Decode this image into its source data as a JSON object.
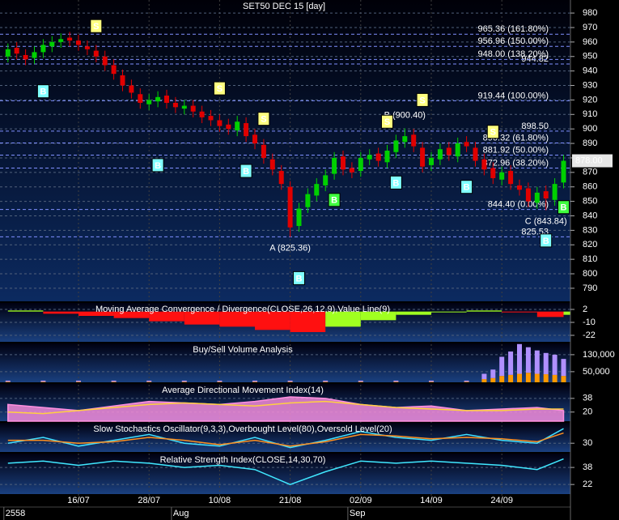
{
  "chart_data": [
    {
      "type": "candlestick",
      "title": "SET50 DEC 15   [day]",
      "categories": [
        null,
        null,
        null,
        null,
        null,
        null,
        null,
        null,
        "16/07",
        null,
        null,
        null,
        null,
        null,
        null,
        null,
        "28/07",
        null,
        null,
        null,
        null,
        null,
        null,
        null,
        "10/08",
        null,
        null,
        null,
        null,
        null,
        null,
        null,
        "21/08",
        null,
        null,
        null,
        null,
        null,
        null,
        null,
        "02/09",
        null,
        null,
        null,
        null,
        null,
        null,
        null,
        "14/09",
        null,
        null,
        null,
        null,
        null,
        null,
        null,
        "24/09",
        null,
        null,
        null,
        null,
        null,
        null,
        null
      ],
      "open": [
        950,
        956,
        951,
        949,
        953,
        957,
        960,
        963,
        961,
        957,
        954,
        950,
        944,
        937,
        930,
        924,
        917,
        919,
        923,
        918,
        914,
        916,
        912,
        909,
        906,
        903,
        899,
        904,
        896,
        889,
        879,
        871,
        860,
        833,
        846,
        854,
        861,
        869,
        881,
        873,
        871,
        879,
        883,
        877,
        884,
        891,
        896,
        887,
        875,
        879,
        887,
        881,
        891,
        887,
        879,
        873,
        865,
        871,
        861,
        859,
        849,
        857,
        851,
        863
      ],
      "high": [
        959,
        960,
        955,
        957,
        962,
        964,
        966,
        967,
        965,
        961,
        958,
        954,
        948,
        941,
        934,
        928,
        924,
        926,
        927,
        922,
        920,
        920,
        916,
        913,
        910,
        907,
        909,
        908,
        900,
        893,
        883,
        875,
        864,
        849,
        859,
        866,
        872,
        884,
        885,
        877,
        884,
        886,
        887,
        889,
        896,
        900.4,
        900,
        891,
        884,
        890,
        891,
        894,
        895,
        891,
        883,
        877,
        874,
        875,
        865,
        863,
        860,
        861,
        866,
        882
      ],
      "low": [
        946,
        948,
        944,
        945,
        949,
        953,
        956,
        957,
        954,
        951,
        946,
        940,
        934,
        926,
        921,
        914,
        913,
        915,
        914,
        911,
        910,
        908,
        904,
        902,
        898,
        896,
        895,
        891,
        886,
        876,
        868,
        858,
        825.36,
        829,
        842,
        850,
        857,
        865,
        868,
        866,
        867,
        875,
        874,
        873,
        880,
        887,
        884,
        870,
        871,
        875,
        878,
        877,
        884,
        874,
        868,
        862,
        861,
        858,
        854,
        846,
        845,
        843.84,
        847,
        859
      ],
      "close": [
        955,
        952,
        948,
        953,
        958,
        960,
        962,
        961,
        958,
        955,
        950,
        944,
        938,
        930,
        925,
        918,
        920,
        922,
        918,
        915,
        916,
        912,
        908,
        906,
        902,
        900,
        905,
        895,
        890,
        880,
        872,
        862,
        832,
        845,
        855,
        862,
        868,
        880,
        872,
        870,
        880,
        882,
        878,
        885,
        892,
        895,
        888,
        874,
        880,
        886,
        882,
        890,
        888,
        878,
        872,
        866,
        870,
        862,
        858,
        850,
        856,
        852,
        862,
        878
      ],
      "up_color": "#00d000",
      "down_color": "#e00000",
      "ylim": [
        781,
        989
      ],
      "yticks": [
        790,
        800,
        810,
        820,
        830,
        840,
        850,
        860,
        870,
        880,
        890,
        900,
        910,
        920,
        930,
        940,
        950,
        960,
        970,
        980
      ],
      "last_price": {
        "value": 878,
        "label": "878.00"
      },
      "levels": [
        {
          "value": 965.36,
          "label": "965.36 (161.80%)"
        },
        {
          "value": 956.96,
          "label": "956.96 (150.00%)"
        },
        {
          "value": 944.82,
          "label": "944.82"
        },
        {
          "value": 948.0,
          "label": "948.00 (138.20%)"
        },
        {
          "value": 919.44,
          "label": "919.44 (100.00%)"
        },
        {
          "value": 898.5,
          "label": "898.50"
        },
        {
          "value": 890.32,
          "label": "890.32 (61.80%)"
        },
        {
          "value": 881.92,
          "label": "881.92 (50.00%)"
        },
        {
          "value": 872.96,
          "label": "872.96 (38.20%)"
        },
        {
          "value": 844.4,
          "label": "844.40 (0.00%)"
        },
        {
          "value": 825.53,
          "label": "825.53"
        }
      ],
      "annotations": [
        {
          "label": "A (825.36)",
          "index": 32,
          "value": 825.36
        },
        {
          "label": "B (900.40)",
          "index": 45,
          "value": 900.4
        },
        {
          "label": "C (843.84)",
          "index": 61,
          "value": 843.84
        }
      ],
      "signals": [
        {
          "label": "B",
          "index": 4,
          "value": 926,
          "color": "#80ffff"
        },
        {
          "label": "S",
          "index": 10,
          "value": 971,
          "color": "#ffff80"
        },
        {
          "label": "B",
          "index": 17,
          "value": 875,
          "color": "#80ffff"
        },
        {
          "label": "S",
          "index": 24,
          "value": 928,
          "color": "#ffff80"
        },
        {
          "label": "B",
          "index": 27,
          "value": 871,
          "color": "#80ffff"
        },
        {
          "label": "S",
          "index": 29,
          "value": 907,
          "color": "#ffff80"
        },
        {
          "label": "B",
          "index": 33,
          "value": 797,
          "color": "#80ffff"
        },
        {
          "label": "B",
          "index": 37,
          "value": 851,
          "color": "#40ff40"
        },
        {
          "label": "S",
          "index": 43,
          "value": 905,
          "color": "#ffff80"
        },
        {
          "label": "B",
          "index": 44,
          "value": 863,
          "color": "#80ffff"
        },
        {
          "label": "S",
          "index": 47,
          "value": 920,
          "color": "#ffff80"
        },
        {
          "label": "B",
          "index": 52,
          "value": 860,
          "color": "#80ffff"
        },
        {
          "label": "S",
          "index": 55,
          "value": 898,
          "color": "#ffff80"
        },
        {
          "label": "B",
          "index": 61,
          "value": 823,
          "color": "#80ffff"
        },
        {
          "label": "B",
          "index": 63,
          "value": 846,
          "color": "#40ff40"
        }
      ],
      "period_labels": [
        {
          "index": 0,
          "label": "2558"
        },
        {
          "index": 19,
          "label": "Aug"
        },
        {
          "index": 39,
          "label": "Sep"
        }
      ]
    },
    {
      "type": "bars",
      "title": "Moving Average Convergence / Divergence(CLOSE,26,12,9),Value Line(9)",
      "ylim": [
        -28,
        8
      ],
      "yticks": [
        2,
        -10,
        -22
      ],
      "up_color": "#a0ff20",
      "down_color": "#ff1010",
      "x": [
        0,
        4,
        8,
        12,
        16,
        20,
        24,
        28,
        32,
        36,
        40,
        44,
        48,
        52,
        56,
        60,
        63
      ],
      "values": [
        1,
        -2,
        -4,
        -6,
        -9,
        -12,
        -14,
        -17,
        -19,
        -14,
        -8,
        -3,
        0,
        1,
        0,
        -5,
        -3
      ]
    },
    {
      "type": "stacked",
      "title": "Buy/Sell Volume Analysis",
      "ylim": [
        0,
        183000
      ],
      "yticks": [
        {
          "value": 130000,
          "label": "130,000"
        },
        {
          "value": 50000,
          "label": "50,000"
        }
      ],
      "x": [
        0,
        4,
        8,
        12,
        16,
        20,
        24,
        28,
        32,
        36,
        40,
        44,
        48,
        52,
        54,
        55,
        56,
        57,
        58,
        59,
        60,
        61,
        62,
        63
      ],
      "series": [
        {
          "color": "#ff9900",
          "values": [
            3000,
            3000,
            3000,
            3000,
            3000,
            3000,
            3000,
            3000,
            3000,
            3000,
            3000,
            3000,
            3000,
            3000,
            15000,
            20000,
            30000,
            35000,
            40000,
            45000,
            40000,
            38000,
            35000,
            30000
          ]
        },
        {
          "color": "#b090ff",
          "values": [
            5000,
            5000,
            5000,
            5000,
            5000,
            5000,
            5000,
            5000,
            5000,
            5000,
            5000,
            5000,
            5000,
            5000,
            25000,
            40000,
            90000,
            110000,
            140000,
            120000,
            110000,
            100000,
            95000,
            80000
          ]
        }
      ]
    },
    {
      "type": "lines",
      "title": "Average Directional Movement Index(14)",
      "ylim": [
        8,
        57
      ],
      "yticks": [
        38,
        20
      ],
      "x": [
        0,
        4,
        8,
        12,
        16,
        20,
        24,
        28,
        32,
        36,
        40,
        44,
        48,
        52,
        56,
        60,
        63
      ],
      "series": [
        {
          "color": "#ff90e0",
          "style": "area",
          "values": [
            30,
            26,
            22,
            28,
            34,
            32,
            30,
            34,
            40,
            38,
            30,
            26,
            28,
            22,
            24,
            26,
            22
          ]
        },
        {
          "color": "#ffd040",
          "values": [
            20,
            18,
            22,
            26,
            30,
            32,
            30,
            28,
            32,
            34,
            30,
            26,
            24,
            22,
            22,
            24,
            24
          ]
        }
      ]
    },
    {
      "type": "lines",
      "title": "Slow Stochastics Oscillator(9,3,3),Overbought Level(80),Oversold Level(20)",
      "ylim": [
        0,
        100
      ],
      "yticks": [
        30
      ],
      "x": [
        0,
        4,
        8,
        12,
        16,
        20,
        24,
        28,
        32,
        36,
        40,
        44,
        48,
        52,
        56,
        60,
        63
      ],
      "series": [
        {
          "color": "#40e0ff",
          "values": [
            30,
            50,
            20,
            40,
            60,
            30,
            20,
            50,
            15,
            40,
            70,
            50,
            40,
            60,
            40,
            30,
            80
          ]
        },
        {
          "color": "#ff9020",
          "values": [
            40,
            40,
            30,
            35,
            50,
            40,
            25,
            40,
            20,
            35,
            60,
            55,
            45,
            50,
            45,
            35,
            65
          ]
        }
      ]
    },
    {
      "type": "lines",
      "title": "Relative Strength Index(CLOSE,14,30,70)",
      "ylim": [
        13,
        51
      ],
      "yticks": [
        38,
        22
      ],
      "x": [
        0,
        4,
        8,
        12,
        16,
        20,
        24,
        28,
        32,
        36,
        40,
        44,
        48,
        52,
        56,
        60,
        63
      ],
      "series": [
        {
          "color": "#40e8ff",
          "values": [
            42,
            44,
            40,
            44,
            42,
            38,
            40,
            36,
            22,
            34,
            44,
            42,
            44,
            42,
            40,
            36,
            46
          ]
        }
      ]
    }
  ]
}
